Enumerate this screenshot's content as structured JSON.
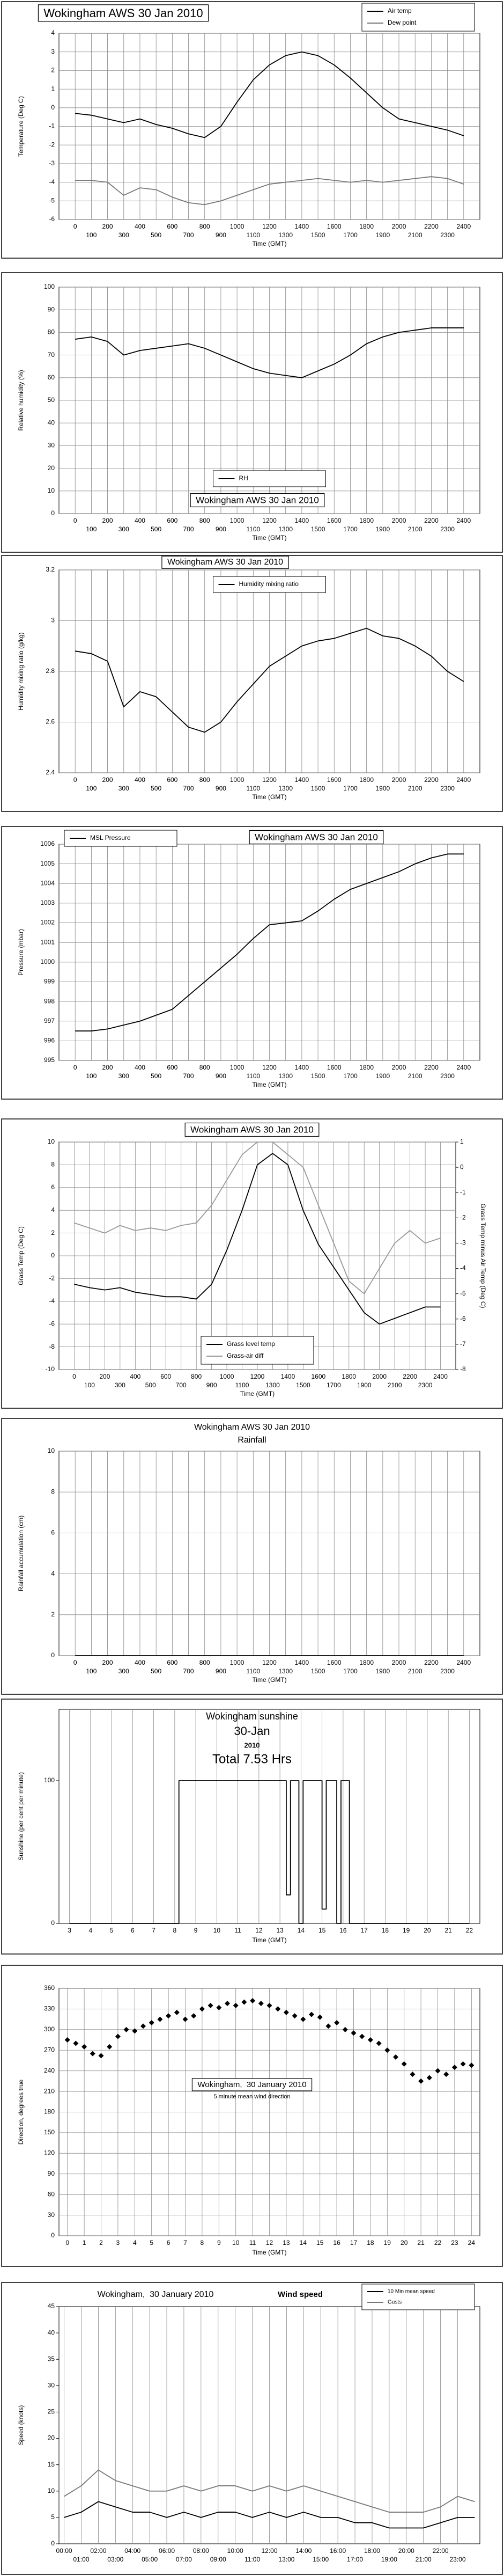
{
  "chart_data": [
    {
      "type": "line",
      "title": "Wokingham AWS 30 Jan 2010",
      "xlabel": "Time (GMT)",
      "ylabel": "Temperature (Deg C)",
      "x": [
        0,
        100,
        200,
        300,
        400,
        500,
        600,
        700,
        800,
        900,
        1000,
        1100,
        1200,
        1300,
        1400,
        1500,
        1600,
        1700,
        1800,
        1900,
        2000,
        2100,
        2200,
        2300,
        2400
      ],
      "xlim": [
        -100,
        2500
      ],
      "xticks": [
        0,
        100,
        200,
        300,
        400,
        500,
        600,
        700,
        800,
        900,
        1000,
        1100,
        1200,
        1300,
        1400,
        1500,
        1600,
        1700,
        1800,
        1900,
        2000,
        2100,
        2200,
        2300,
        2400
      ],
      "ylim": [
        -6,
        4
      ],
      "yticks": [
        -6,
        -5,
        -4,
        -3,
        -2,
        -1,
        0,
        1,
        2,
        3,
        4
      ],
      "grid": "both",
      "legend": "upper right",
      "series": [
        {
          "name": "Air temp",
          "color": "#000000",
          "values": [
            -0.3,
            -0.4,
            -0.6,
            -0.8,
            -0.6,
            -0.9,
            -1.1,
            -1.4,
            -1.6,
            -1.0,
            0.3,
            1.5,
            2.3,
            2.8,
            3.0,
            2.8,
            2.3,
            1.6,
            0.8,
            0.0,
            -0.6,
            -0.8,
            -1.0,
            -1.2,
            -1.5
          ]
        },
        {
          "name": "Dew point",
          "color": "#777777",
          "values": [
            -3.9,
            -3.9,
            -4.0,
            -4.7,
            -4.3,
            -4.4,
            -4.8,
            -5.1,
            -5.2,
            -5.0,
            -4.7,
            -4.4,
            -4.1,
            -4.0,
            -3.9,
            -3.8,
            -3.9,
            -4.0,
            -3.9,
            -4.0,
            -3.9,
            -3.8,
            -3.7,
            -3.8,
            -4.1
          ]
        }
      ]
    },
    {
      "type": "line",
      "title": "Wokingham AWS 30 Jan 2010",
      "xlabel": "Time (GMT)",
      "ylabel": "Relative humidity (%)",
      "x": [
        0,
        100,
        200,
        300,
        400,
        500,
        600,
        700,
        800,
        900,
        1000,
        1100,
        1200,
        1300,
        1400,
        1500,
        1600,
        1700,
        1800,
        1900,
        2000,
        2100,
        2200,
        2300,
        2400
      ],
      "xlim": [
        -100,
        2500
      ],
      "xticks": [
        0,
        100,
        200,
        300,
        400,
        500,
        600,
        700,
        800,
        900,
        1000,
        1100,
        1200,
        1300,
        1400,
        1500,
        1600,
        1700,
        1800,
        1900,
        2000,
        2100,
        2200,
        2300,
        2400
      ],
      "ylim": [
        0,
        100
      ],
      "yticks": [
        0,
        10,
        20,
        30,
        40,
        50,
        60,
        70,
        80,
        90,
        100
      ],
      "grid": "both",
      "legend": "lower center",
      "series": [
        {
          "name": "RH",
          "color": "#000000",
          "values": [
            77,
            78,
            76,
            70,
            72,
            73,
            74,
            75,
            73,
            70,
            67,
            64,
            62,
            61,
            60,
            63,
            66,
            70,
            75,
            78,
            80,
            81,
            82,
            82,
            82
          ]
        }
      ]
    },
    {
      "type": "line",
      "title": "Wokingham AWS 30 Jan 2010",
      "xlabel": "Time (GMT)",
      "ylabel": "Humidity mixing ratio (g/kg)",
      "x": [
        0,
        100,
        200,
        300,
        400,
        500,
        600,
        700,
        800,
        900,
        1000,
        1100,
        1200,
        1300,
        1400,
        1500,
        1600,
        1700,
        1800,
        1900,
        2000,
        2100,
        2200,
        2300,
        2400
      ],
      "xlim": [
        -100,
        2500
      ],
      "xticks": [
        0,
        100,
        200,
        300,
        400,
        500,
        600,
        700,
        800,
        900,
        1000,
        1100,
        1200,
        1300,
        1400,
        1500,
        1600,
        1700,
        1800,
        1900,
        2000,
        2100,
        2200,
        2300,
        2400
      ],
      "ylim": [
        2.4,
        3.2
      ],
      "yticks": [
        2.4,
        2.6,
        2.8,
        3,
        3.2
      ],
      "grid": "both",
      "legend": "upper center",
      "series": [
        {
          "name": "Humidity mixing ratio",
          "color": "#000000",
          "values": [
            2.88,
            2.87,
            2.84,
            2.66,
            2.72,
            2.7,
            2.64,
            2.58,
            2.56,
            2.6,
            2.68,
            2.75,
            2.82,
            2.86,
            2.9,
            2.92,
            2.93,
            2.95,
            2.97,
            2.94,
            2.93,
            2.9,
            2.86,
            2.8,
            2.76
          ]
        }
      ]
    },
    {
      "type": "line",
      "title": "Wokingham AWS 30 Jan 2010",
      "xlabel": "Time (GMT)",
      "ylabel": "Pressure (mbar)",
      "x": [
        0,
        100,
        200,
        300,
        400,
        500,
        600,
        700,
        800,
        900,
        1000,
        1100,
        1200,
        1300,
        1400,
        1500,
        1600,
        1700,
        1800,
        1900,
        2000,
        2100,
        2200,
        2300,
        2400
      ],
      "xlim": [
        -100,
        2500
      ],
      "xticks": [
        0,
        100,
        200,
        300,
        400,
        500,
        600,
        700,
        800,
        900,
        1000,
        1100,
        1200,
        1300,
        1400,
        1500,
        1600,
        1700,
        1800,
        1900,
        2000,
        2100,
        2200,
        2300,
        2400
      ],
      "ylim": [
        995,
        1006
      ],
      "yticks": [
        995,
        996,
        997,
        998,
        999,
        1000,
        1001,
        1002,
        1003,
        1004,
        1005,
        1006
      ],
      "grid": "both",
      "legend": "upper left",
      "series": [
        {
          "name": "MSL Pressure",
          "color": "#000000",
          "values": [
            996.5,
            996.5,
            996.6,
            996.8,
            997.0,
            997.3,
            997.6,
            998.3,
            999.0,
            999.7,
            1000.4,
            1001.2,
            1001.9,
            1002.0,
            1002.1,
            1002.6,
            1003.2,
            1003.7,
            1004.0,
            1004.3,
            1004.6,
            1005.0,
            1005.3,
            1005.5,
            1005.5
          ]
        }
      ]
    },
    {
      "type": "line",
      "title": "Wokingham AWS 30 Jan 2010",
      "xlabel": "Time (GMT)",
      "ylabel": "Grass Temp (Deg C)",
      "y2label": "Grass Temp minus Air Temp (Deg C)",
      "x": [
        0,
        100,
        200,
        300,
        400,
        500,
        600,
        700,
        800,
        900,
        1000,
        1100,
        1200,
        1300,
        1400,
        1500,
        1600,
        1700,
        1800,
        1900,
        2000,
        2100,
        2200,
        2300,
        2400
      ],
      "xlim": [
        -100,
        2500
      ],
      "xticks": [
        0,
        100,
        200,
        300,
        400,
        500,
        600,
        700,
        800,
        900,
        1000,
        1100,
        1200,
        1300,
        1400,
        1500,
        1600,
        1700,
        1800,
        1900,
        2000,
        2100,
        2200,
        2300,
        2400
      ],
      "ylim": [
        -10,
        10
      ],
      "yticks": [
        -10,
        -8,
        -6,
        -4,
        -2,
        0,
        2,
        4,
        6,
        8,
        10
      ],
      "y2lim": [
        -8,
        1
      ],
      "y2ticks": [
        -8,
        -7,
        -6,
        -5,
        -4,
        -3,
        -2,
        -1,
        0,
        1
      ],
      "grid": "both",
      "legend": "lower center",
      "series": [
        {
          "name": "Grass level temp",
          "color": "#000000",
          "values": [
            -2.5,
            -2.8,
            -3.0,
            -2.8,
            -3.2,
            -3.4,
            -3.6,
            -3.6,
            -3.8,
            -2.5,
            0.5,
            4,
            8,
            9,
            8,
            4,
            1,
            -1,
            -3,
            -5,
            -6,
            -5.5,
            -5,
            -4.5,
            -4.5
          ]
        },
        {
          "name": "Grass-air diff",
          "color": "#999999",
          "axis": "y2",
          "values": [
            -2.2,
            -2.4,
            -2.6,
            -2.3,
            -2.5,
            -2.4,
            -2.5,
            -2.3,
            -2.2,
            -1.5,
            -0.5,
            0.5,
            1,
            1,
            0.5,
            0,
            -1.5,
            -3,
            -4.5,
            -5,
            -4,
            -3,
            -2.5,
            -3,
            -2.8
          ]
        }
      ]
    },
    {
      "type": "line",
      "title": "Wokingham AWS 30 Jan 2010",
      "annotations": [
        "Rainfall"
      ],
      "xlabel": "Time (GMT)",
      "ylabel": "Rainfall accumulation (cm)",
      "x": [
        0,
        100,
        200,
        300,
        400,
        500,
        600,
        700,
        800,
        900,
        1000,
        1100,
        1200,
        1300,
        1400,
        1500,
        1600,
        1700,
        1800,
        1900,
        2000,
        2100,
        2200,
        2300,
        2400
      ],
      "xlim": [
        -100,
        2500
      ],
      "xticks": [
        0,
        100,
        200,
        300,
        400,
        500,
        600,
        700,
        800,
        900,
        1000,
        1100,
        1200,
        1300,
        1400,
        1500,
        1600,
        1700,
        1800,
        1900,
        2000,
        2100,
        2200,
        2300,
        2400
      ],
      "ylim": [
        0,
        10
      ],
      "yticks": [
        0,
        2,
        4,
        6,
        8,
        10
      ],
      "grid": "both",
      "series": [
        {
          "color": "#000000",
          "values": [
            0,
            0,
            0,
            0,
            0,
            0,
            0,
            0,
            0,
            0,
            0,
            0,
            0,
            0,
            0,
            0,
            0,
            0,
            0,
            0,
            0,
            0,
            0,
            0,
            0
          ]
        }
      ]
    },
    {
      "type": "line",
      "title": "Wokingham sunshine",
      "annotations": [
        "30-Jan",
        "2010",
        "Total 7.53 Hrs"
      ],
      "xlabel": "Time (GMT)",
      "ylabel": "Sunshine (per cent per minute)",
      "x": [
        3,
        8.2,
        8.2,
        13.3,
        13.3,
        13.5,
        13.5,
        13.9,
        13.9,
        14.1,
        14.1,
        15.0,
        15.0,
        15.2,
        15.2,
        15.7,
        15.7,
        15.9,
        15.9,
        16.3,
        16.3,
        22
      ],
      "xlim": [
        2.5,
        22.5
      ],
      "xticks": [
        3,
        4,
        5,
        6,
        7,
        8,
        9,
        10,
        11,
        12,
        13,
        14,
        15,
        16,
        17,
        18,
        19,
        20,
        21,
        22
      ],
      "ylim": [
        0,
        150
      ],
      "yticks": [
        0,
        100
      ],
      "grid": "x",
      "series": [
        {
          "color": "#000000",
          "values": [
            0,
            0,
            100,
            100,
            20,
            20,
            100,
            100,
            0,
            0,
            100,
            100,
            10,
            10,
            100,
            100,
            0,
            0,
            100,
            100,
            0,
            0
          ]
        }
      ]
    },
    {
      "type": "scatter",
      "title": "Wokingham,  30 January 2010",
      "annotations": [
        "5 minute mean wind direction"
      ],
      "xlabel": "Time (GMT)",
      "ylabel": "Direction, degrees true",
      "x": [
        0,
        0.5,
        1,
        1.5,
        2,
        2.5,
        3,
        3.5,
        4,
        4.5,
        5,
        5.5,
        6,
        6.5,
        7,
        7.5,
        8,
        8.5,
        9,
        9.5,
        10,
        10.5,
        11,
        11.5,
        12,
        12.5,
        13,
        13.5,
        14,
        14.5,
        15,
        15.5,
        16,
        16.5,
        17,
        17.5,
        18,
        18.5,
        19,
        19.5,
        20,
        20.5,
        21,
        21.5,
        22,
        22.5,
        23,
        23.5,
        24
      ],
      "xlim": [
        -0.5,
        24.5
      ],
      "xticks": [
        0,
        1,
        2,
        3,
        4,
        5,
        6,
        7,
        8,
        9,
        10,
        11,
        12,
        13,
        14,
        15,
        16,
        17,
        18,
        19,
        20,
        21,
        22,
        23,
        24
      ],
      "ylim": [
        0,
        360
      ],
      "yticks": [
        0,
        30,
        60,
        90,
        120,
        150,
        180,
        210,
        240,
        270,
        300,
        330,
        360
      ],
      "grid": "both",
      "series": [
        {
          "color": "#000000",
          "values": [
            285,
            280,
            275,
            265,
            262,
            275,
            290,
            300,
            298,
            305,
            310,
            315,
            320,
            325,
            315,
            320,
            330,
            335,
            332,
            338,
            335,
            340,
            342,
            338,
            335,
            330,
            325,
            320,
            315,
            322,
            318,
            305,
            310,
            300,
            295,
            290,
            285,
            280,
            270,
            260,
            250,
            235,
            225,
            230,
            240,
            235,
            245,
            250,
            248
          ]
        }
      ]
    },
    {
      "type": "line",
      "title": "Wokingham,  30 January 2010",
      "annotations": [
        "Wind speed"
      ],
      "ylabel": "Speed (knots)",
      "x": [
        0,
        1,
        2,
        3,
        4,
        5,
        6,
        7,
        8,
        9,
        10,
        11,
        12,
        13,
        14,
        15,
        16,
        17,
        18,
        19,
        20,
        21,
        22,
        23,
        24
      ],
      "xlim": [
        -0.3,
        24.3
      ],
      "xticks": [
        {
          "value": 0,
          "label": "00:00"
        },
        {
          "value": 1,
          "label": "01:00"
        },
        {
          "value": 2,
          "label": "02:00"
        },
        {
          "value": 3,
          "label": "03:00"
        },
        {
          "value": 4,
          "label": "04:00"
        },
        {
          "value": 5,
          "label": "05:00"
        },
        {
          "value": 6,
          "label": "06:00"
        },
        {
          "value": 7,
          "label": "07:00"
        },
        {
          "value": 8,
          "label": "08:00"
        },
        {
          "value": 9,
          "label": "09:00"
        },
        {
          "value": 10,
          "label": "10:00"
        },
        {
          "value": 11,
          "label": "11:00"
        },
        {
          "value": 12,
          "label": "12:00"
        },
        {
          "value": 13,
          "label": "13:00"
        },
        {
          "value": 14,
          "label": "14:00"
        },
        {
          "value": 15,
          "label": "15:00"
        },
        {
          "value": 16,
          "label": "16:00"
        },
        {
          "value": 17,
          "label": "17:00"
        },
        {
          "value": 18,
          "label": "18:00"
        },
        {
          "value": 19,
          "label": "19:00"
        },
        {
          "value": 20,
          "label": "20:00"
        },
        {
          "value": 21,
          "label": "21:00"
        },
        {
          "value": 22,
          "label": "22:00"
        },
        {
          "value": 23,
          "label": "23:00"
        }
      ],
      "ylim": [
        0,
        45
      ],
      "yticks": [
        0,
        5,
        10,
        15,
        20,
        25,
        30,
        35,
        40,
        45
      ],
      "grid": "x",
      "legend": "upper right",
      "series": [
        {
          "name": "10 Min mean speed",
          "color": "#000000",
          "values": [
            5,
            6,
            8,
            7,
            6,
            6,
            5,
            6,
            5,
            6,
            6,
            5,
            6,
            5,
            6,
            5,
            5,
            4,
            4,
            3,
            3,
            3,
            4,
            5,
            5
          ]
        },
        {
          "name": "Gusts",
          "color": "#777777",
          "values": [
            9,
            11,
            14,
            12,
            11,
            10,
            10,
            11,
            10,
            11,
            11,
            10,
            11,
            10,
            11,
            10,
            9,
            8,
            7,
            6,
            6,
            6,
            7,
            9,
            8
          ]
        }
      ]
    }
  ]
}
